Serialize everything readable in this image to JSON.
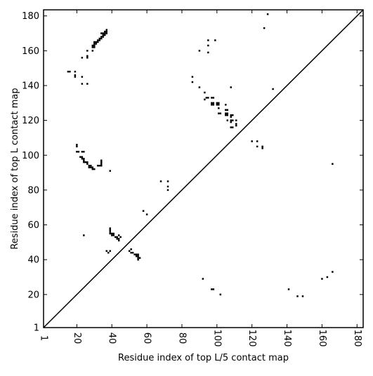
{
  "chart_data": {
    "type": "scatter",
    "title": "",
    "xlabel": "Residue index of top L/5 contact map",
    "ylabel": "Residue index of top L contact map",
    "xlim": [
      1,
      183.5
    ],
    "ylim": [
      1,
      183.5
    ],
    "xticks": [
      1,
      20,
      40,
      60,
      80,
      100,
      120,
      140,
      160,
      180
    ],
    "yticks": [
      1,
      20,
      40,
      60,
      80,
      100,
      120,
      140,
      160,
      180
    ],
    "grid": false,
    "diagonal": {
      "from": [
        1,
        1
      ],
      "to": [
        183.5,
        183.5
      ],
      "color": "#000000"
    },
    "marker_color": "#000000",
    "series": [
      {
        "values": [
          [
            34,
            170
          ],
          [
            35,
            170
          ],
          [
            36,
            170
          ],
          [
            37,
            170
          ],
          [
            36,
            171
          ],
          [
            37,
            171
          ],
          [
            37,
            172
          ],
          [
            35,
            169
          ],
          [
            36,
            169
          ],
          [
            34,
            168
          ],
          [
            35,
            168
          ],
          [
            33,
            167
          ],
          [
            34,
            167
          ],
          [
            32,
            166
          ],
          [
            33,
            166
          ],
          [
            30,
            165
          ],
          [
            31,
            165
          ],
          [
            32,
            165
          ],
          [
            30,
            164
          ],
          [
            31,
            164
          ],
          [
            29,
            163
          ],
          [
            30,
            163
          ],
          [
            29,
            162
          ],
          [
            30,
            162
          ],
          [
            26,
            160
          ],
          [
            29,
            160
          ],
          [
            26,
            157
          ],
          [
            23,
            156
          ],
          [
            26,
            156
          ],
          [
            15,
            148
          ],
          [
            16,
            148
          ],
          [
            19,
            148
          ],
          [
            19,
            146
          ],
          [
            19,
            145
          ],
          [
            23,
            145
          ],
          [
            23,
            141
          ],
          [
            26,
            141
          ],
          [
            20,
            106
          ],
          [
            20,
            105
          ],
          [
            20,
            102
          ],
          [
            21,
            102
          ],
          [
            23,
            102
          ],
          [
            24,
            102
          ],
          [
            22,
            99
          ],
          [
            23,
            99
          ],
          [
            23,
            98
          ],
          [
            24,
            98
          ],
          [
            24,
            97
          ],
          [
            24,
            96
          ],
          [
            25,
            96
          ],
          [
            26,
            96
          ],
          [
            26,
            95
          ],
          [
            27,
            94
          ],
          [
            28,
            94
          ],
          [
            27,
            93
          ],
          [
            28,
            93
          ],
          [
            29,
            93
          ],
          [
            29,
            92
          ],
          [
            30,
            92
          ],
          [
            32,
            94
          ],
          [
            33,
            94
          ],
          [
            34,
            94
          ],
          [
            34,
            95
          ],
          [
            34,
            96
          ],
          [
            34,
            97
          ],
          [
            39,
            91
          ],
          [
            24,
            54
          ],
          [
            39,
            58
          ],
          [
            39,
            57
          ],
          [
            39,
            56
          ],
          [
            39,
            55
          ],
          [
            40,
            55
          ],
          [
            41,
            55
          ],
          [
            40,
            54
          ],
          [
            41,
            54
          ],
          [
            42,
            53
          ],
          [
            43,
            53
          ],
          [
            43,
            52
          ],
          [
            44,
            52
          ],
          [
            44,
            51
          ],
          [
            45,
            53
          ],
          [
            44,
            54
          ],
          [
            37,
            45
          ],
          [
            38,
            44
          ],
          [
            39,
            45
          ],
          [
            50,
            45
          ],
          [
            51,
            46
          ],
          [
            51,
            44
          ],
          [
            52,
            44
          ],
          [
            53,
            43
          ],
          [
            54,
            43
          ],
          [
            55,
            43
          ],
          [
            54,
            42
          ],
          [
            55,
            42
          ],
          [
            55,
            41
          ],
          [
            55,
            40
          ],
          [
            56,
            41
          ],
          [
            58,
            68
          ],
          [
            60,
            66
          ],
          [
            68,
            85
          ],
          [
            72,
            85
          ],
          [
            72,
            82
          ],
          [
            72,
            80
          ],
          [
            86,
            145
          ],
          [
            86,
            142
          ],
          [
            90,
            139
          ],
          [
            90,
            160
          ],
          [
            95,
            166
          ],
          [
            95,
            163
          ],
          [
            95,
            159
          ],
          [
            99,
            166
          ],
          [
            93,
            136
          ],
          [
            94,
            133
          ],
          [
            95,
            133
          ],
          [
            93,
            132
          ],
          [
            97,
            133
          ],
          [
            98,
            133
          ],
          [
            97,
            130
          ],
          [
            98,
            130
          ],
          [
            97,
            129
          ],
          [
            98,
            129
          ],
          [
            100,
            130
          ],
          [
            101,
            130
          ],
          [
            100,
            129
          ],
          [
            101,
            129
          ],
          [
            101,
            127
          ],
          [
            101,
            124
          ],
          [
            102,
            124
          ],
          [
            105,
            129
          ],
          [
            105,
            126
          ],
          [
            106,
            126
          ],
          [
            105,
            124
          ],
          [
            106,
            124
          ],
          [
            105,
            123
          ],
          [
            106,
            123
          ],
          [
            106,
            120
          ],
          [
            108,
            139
          ],
          [
            108,
            123
          ],
          [
            109,
            123
          ],
          [
            108,
            122
          ],
          [
            108,
            120
          ],
          [
            109,
            120
          ],
          [
            108,
            119
          ],
          [
            108,
            116
          ],
          [
            109,
            116
          ],
          [
            111,
            120
          ],
          [
            111,
            118
          ],
          [
            111,
            117
          ],
          [
            120,
            108
          ],
          [
            123,
            108
          ],
          [
            123,
            105
          ],
          [
            126,
            105
          ],
          [
            126,
            104
          ],
          [
            127,
            173
          ],
          [
            129,
            181
          ],
          [
            132,
            138
          ],
          [
            92,
            29
          ],
          [
            97,
            23
          ],
          [
            98,
            23
          ],
          [
            102,
            20
          ],
          [
            141,
            23
          ],
          [
            146,
            19
          ],
          [
            149,
            19
          ],
          [
            160,
            29
          ],
          [
            163,
            30
          ],
          [
            166,
            33
          ],
          [
            166,
            95
          ]
        ]
      }
    ]
  }
}
